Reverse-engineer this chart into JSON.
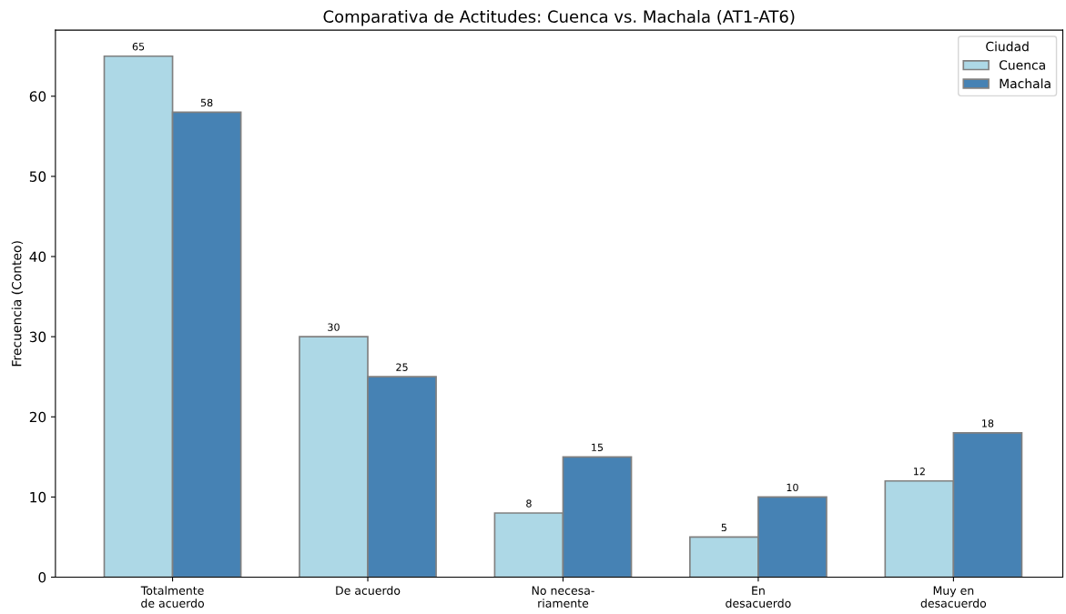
{
  "chart_data": {
    "type": "bar",
    "title": "Comparativa de Actitudes: Cuenca vs. Machala (AT1-AT6)",
    "ylabel": "Frecuencia (Conteo)",
    "categories": [
      "Totalmente\nde acuerdo",
      "De acuerdo",
      "No necesa-\nriamente",
      "En\ndesacuerdo",
      "Muy en\ndesacuerdo"
    ],
    "series": [
      {
        "name": "Cuenca",
        "color": "#add8e6",
        "values": [
          65,
          30,
          8,
          5,
          12
        ]
      },
      {
        "name": "Machala",
        "color": "#4682b4",
        "values": [
          58,
          25,
          15,
          10,
          18
        ]
      }
    ],
    "ylim": [
      0,
      68.25
    ],
    "yticks": [
      0,
      10,
      20,
      30,
      40,
      50,
      60
    ],
    "legend_title": "Ciudad",
    "legend": "top right",
    "data_labels": true,
    "grid": false
  }
}
